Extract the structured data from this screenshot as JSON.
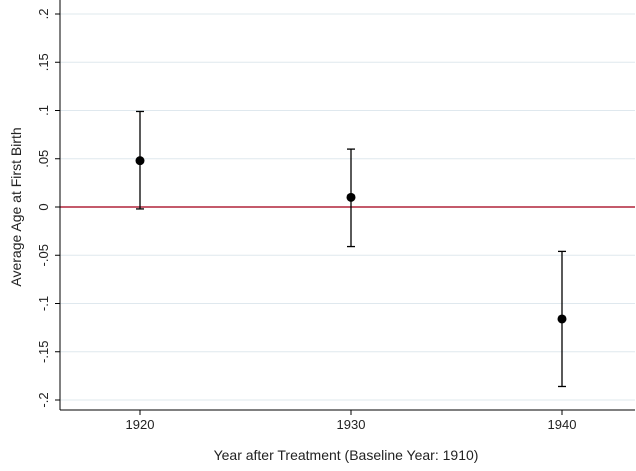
{
  "chart_data": {
    "type": "scatter",
    "title": "",
    "xlabel": "Year after Treatment (Baseline Year: 1910)",
    "ylabel": "Average Age at First Birth",
    "x": [
      1920,
      1930,
      1940
    ],
    "xticks": [
      "1920",
      "1930",
      "1940"
    ],
    "xlim": [
      1918,
      1942
    ],
    "ylim": [
      -0.21,
      0.21
    ],
    "yticks": [
      0.2,
      0.15,
      0.1,
      0.05,
      0,
      -0.05,
      -0.1,
      -0.15,
      -0.2
    ],
    "ytick_labels": [
      ".2",
      ".15",
      ".1",
      ".05",
      "0",
      "-.05",
      "-.1",
      "-.15",
      "-.2"
    ],
    "series": [
      {
        "point_estimates": [
          0.048,
          0.01,
          -0.116
        ],
        "ci_lower": [
          -0.002,
          -0.041,
          -0.186
        ],
        "ci_upper": [
          0.099,
          0.06,
          -0.046
        ]
      }
    ],
    "reference_line": {
      "y": 0,
      "color": "#b0243a"
    },
    "grid": true,
    "colors": {
      "grid": "#dfe8ee",
      "marker": "#000000",
      "axis": "#000000"
    }
  }
}
